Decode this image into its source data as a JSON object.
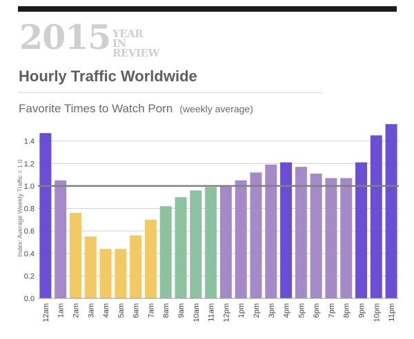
{
  "header": {
    "year": "2015",
    "tag_line1": "YEAR IN",
    "tag_line2": "REVIEW",
    "title": "Hourly Traffic Worldwide",
    "subtitle": "Favorite Times to Watch Porn",
    "subtitle_note": "(weekly average)"
  },
  "colors": {
    "dark_purple": "#6a4fd6",
    "light_purple": "#a48ac8",
    "yellow": "#f2c963",
    "green": "#8cc2a0",
    "reference_line": "#808080",
    "grid": "#d0d0d0",
    "header_gray": "#cfcfcf",
    "title_gray": "#5f5f5f"
  },
  "chart_data": {
    "type": "bar",
    "categories": [
      "12am",
      "1am",
      "2am",
      "3am",
      "4am",
      "5am",
      "6am",
      "7am",
      "8am",
      "9am",
      "10am",
      "11am",
      "12pm",
      "1pm",
      "2pm",
      "3pm",
      "4pm",
      "5pm",
      "6pm",
      "7pm",
      "8pm",
      "9pm",
      "10pm",
      "11pm"
    ],
    "values": [
      1.47,
      1.05,
      0.76,
      0.55,
      0.44,
      0.44,
      0.56,
      0.7,
      0.82,
      0.9,
      0.96,
      0.99,
      1.0,
      1.05,
      1.12,
      1.19,
      1.21,
      1.17,
      1.11,
      1.07,
      1.07,
      1.21,
      1.45,
      1.55
    ],
    "color_groups": [
      "dark_purple",
      "light_purple",
      "yellow",
      "yellow",
      "yellow",
      "yellow",
      "yellow",
      "yellow",
      "green",
      "green",
      "green",
      "green",
      "light_purple",
      "light_purple",
      "light_purple",
      "light_purple",
      "dark_purple",
      "light_purple",
      "light_purple",
      "light_purple",
      "light_purple",
      "dark_purple",
      "dark_purple",
      "dark_purple"
    ],
    "ylabel": "Index: Average Weekly Traffic = 1.0",
    "ylim": [
      0,
      1.6
    ],
    "yticks": [
      0.0,
      0.2,
      0.4,
      0.6,
      0.8,
      1.0,
      1.2,
      1.4
    ],
    "ytick_labels": [
      "0.0",
      "0.2",
      "0.4",
      "0.6",
      "0.8",
      "1.0",
      "1.2",
      "1.4"
    ],
    "reference_line": 1.0,
    "grid": true
  }
}
